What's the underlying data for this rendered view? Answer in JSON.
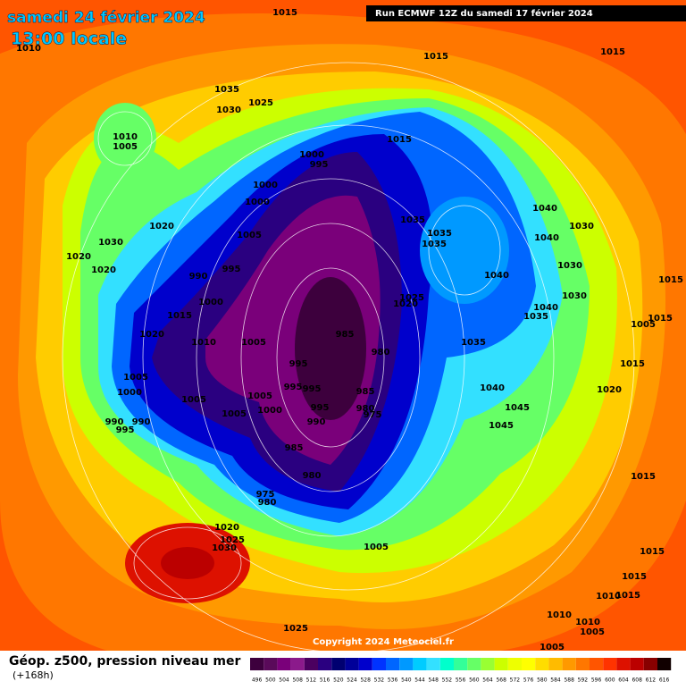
{
  "header": {
    "date": "samedi 24 février 2024",
    "time": "13:00 locale",
    "run": "Run ECMWF 12Z du samedi 17 février 2024"
  },
  "footer": {
    "caption": "Géop. z500, pression niveau mer",
    "lead": "(+168h)",
    "copyright": "Copyright 2024 Meteociel.fr"
  },
  "legend": {
    "levels": [
      496,
      500,
      504,
      508,
      512,
      516,
      520,
      524,
      528,
      532,
      536,
      540,
      544,
      548,
      552,
      556,
      560,
      564,
      568,
      572,
      576,
      580,
      584,
      588,
      592,
      596,
      600,
      604,
      608,
      612,
      616
    ],
    "colors": [
      "#3d003d",
      "#5a0a5a",
      "#7a007a",
      "#8b1a8b",
      "#4b0060",
      "#2a0080",
      "#000070",
      "#000099",
      "#0000cc",
      "#0033ff",
      "#0066ff",
      "#0099ff",
      "#00ccff",
      "#33e0ff",
      "#00ffcc",
      "#33ff99",
      "#66ff66",
      "#99ff33",
      "#ccff00",
      "#eeff00",
      "#ffff00",
      "#ffdd00",
      "#ffbb00",
      "#ff9900",
      "#ff7700",
      "#ff5500",
      "#ff3300",
      "#dd1100",
      "#bb0000",
      "#880000",
      "#110000"
    ]
  },
  "isobar_labels": [
    "1015",
    "1015",
    "1015",
    "1010",
    "1035",
    "1025",
    "1030",
    "1010",
    "1005",
    "1015",
    "1000",
    "995",
    "1000",
    "1000",
    "1035",
    "1040",
    "1030",
    "1035",
    "1035",
    "1040",
    "1020",
    "1030",
    "1020",
    "1020",
    "1005",
    "995",
    "990",
    "1030",
    "1040",
    "1015",
    "1025",
    "1020",
    "1000",
    "1030",
    "1040",
    "1035",
    "1015",
    "1015",
    "1005",
    "1020",
    "985",
    "1010",
    "1005",
    "1035",
    "980",
    "995",
    "1015",
    "1005",
    "995",
    "995",
    "985",
    "1040",
    "1000",
    "1005",
    "1005",
    "1020",
    "995",
    "980",
    "975",
    "1000",
    "1005",
    "1045",
    "990",
    "990",
    "995",
    "990",
    "1045",
    "985",
    "1015",
    "980",
    "975",
    "980",
    "1020",
    "1025",
    "1030",
    "1005",
    "1015",
    "1015",
    "1010",
    "1015",
    "1010",
    "1010",
    "1005",
    "1025",
    "1005"
  ]
}
